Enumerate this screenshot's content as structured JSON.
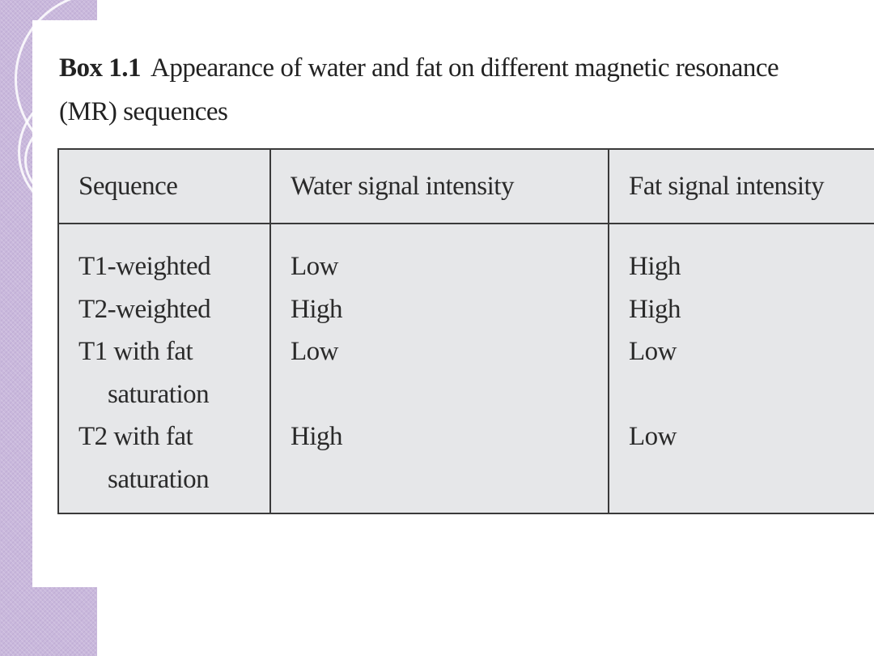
{
  "box": {
    "label": "Box 1.1",
    "title": "Appearance of water and fat on different magnetic resonance (MR) sequences"
  },
  "table": {
    "headers": [
      "Sequence",
      "Water signal intensity",
      "Fat signal intensity"
    ],
    "rows": [
      {
        "sequence": [
          "T1-weighted"
        ],
        "water": "Low",
        "fat": "High"
      },
      {
        "sequence": [
          "T2-weighted"
        ],
        "water": "High",
        "fat": "High"
      },
      {
        "sequence": [
          "T1 with fat",
          "saturation"
        ],
        "water": "Low",
        "fat": "Low"
      },
      {
        "sequence": [
          "T2 with fat",
          "saturation"
        ],
        "water": "High",
        "fat": "Low"
      }
    ]
  }
}
